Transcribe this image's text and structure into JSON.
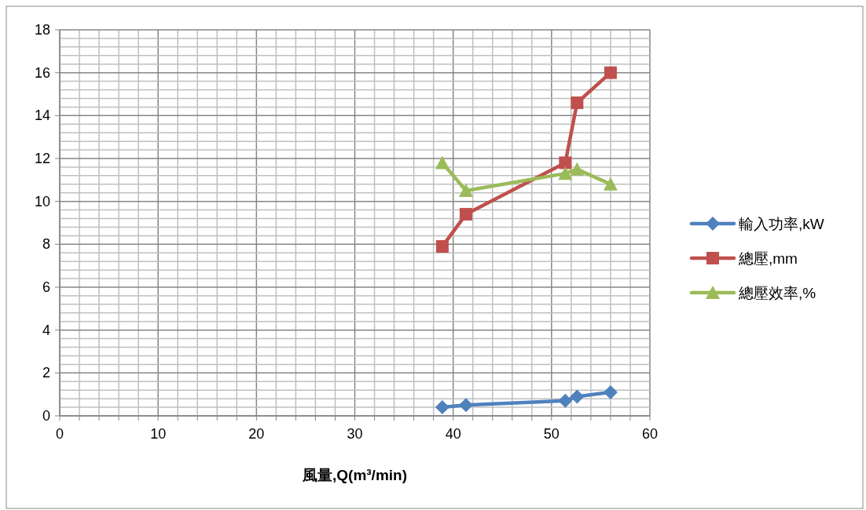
{
  "chart_data": {
    "type": "line",
    "xlabel": "風量,Q(m³/min)",
    "xlim": [
      0,
      60
    ],
    "ylim": [
      0,
      18
    ],
    "xticks": [
      0,
      {
        "value": 2,
        "label": null
      },
      {
        "value": 4,
        "label": null
      },
      {
        "value": 6,
        "label": null
      },
      {
        "value": 8,
        "label": null
      },
      10,
      {
        "value": 12,
        "label": null
      },
      {
        "value": 14,
        "label": null
      },
      {
        "value": 16,
        "label": null
      },
      {
        "value": 18,
        "label": null
      },
      20,
      {
        "value": 22,
        "label": null
      },
      {
        "value": 24,
        "label": null
      },
      {
        "value": 26,
        "label": null
      },
      {
        "value": 28,
        "label": null
      },
      30,
      {
        "value": 32,
        "label": null
      },
      {
        "value": 34,
        "label": null
      },
      {
        "value": 36,
        "label": null
      },
      {
        "value": 38,
        "label": null
      },
      40,
      {
        "value": 42,
        "label": null
      },
      {
        "value": 44,
        "label": null
      },
      {
        "value": 46,
        "label": null
      },
      {
        "value": 48,
        "label": null
      },
      50,
      {
        "value": 52,
        "label": null
      },
      {
        "value": 54,
        "label": null
      },
      {
        "value": 56,
        "label": null
      },
      {
        "value": 58,
        "label": null
      },
      60
    ],
    "yticks": [
      0,
      {
        "value": 0.4,
        "label": null
      },
      {
        "value": 0.8,
        "label": null
      },
      {
        "value": 1.2,
        "label": null
      },
      {
        "value": 1.6,
        "label": null
      },
      2,
      {
        "value": 2.4,
        "label": null
      },
      {
        "value": 2.8,
        "label": null
      },
      {
        "value": 3.2,
        "label": null
      },
      {
        "value": 3.6,
        "label": null
      },
      4,
      {
        "value": 4.4,
        "label": null
      },
      {
        "value": 4.8,
        "label": null
      },
      {
        "value": 5.2,
        "label": null
      },
      {
        "value": 5.6,
        "label": null
      },
      6,
      {
        "value": 6.4,
        "label": null
      },
      {
        "value": 6.8,
        "label": null
      },
      {
        "value": 7.2,
        "label": null
      },
      {
        "value": 7.6,
        "label": null
      },
      8,
      {
        "value": 8.4,
        "label": null
      },
      {
        "value": 8.8,
        "label": null
      },
      {
        "value": 9.2,
        "label": null
      },
      {
        "value": 9.6,
        "label": null
      },
      10,
      {
        "value": 10.4,
        "label": null
      },
      {
        "value": 10.8,
        "label": null
      },
      {
        "value": 11.2,
        "label": null
      },
      {
        "value": 11.6,
        "label": null
      },
      12,
      {
        "value": 12.4,
        "label": null
      },
      {
        "value": 12.8,
        "label": null
      },
      {
        "value": 13.2,
        "label": null
      },
      {
        "value": 13.6,
        "label": null
      },
      14,
      {
        "value": 14.4,
        "label": null
      },
      {
        "value": 14.8,
        "label": null
      },
      {
        "value": 15.2,
        "label": null
      },
      {
        "value": 15.6,
        "label": null
      },
      16,
      {
        "value": 16.4,
        "label": null
      },
      {
        "value": 16.8,
        "label": null
      },
      {
        "value": 17.2,
        "label": null
      },
      {
        "value": 17.6,
        "label": null
      },
      18
    ],
    "x": [
      38.9,
      41.3,
      51.4,
      52.6,
      56.0
    ],
    "grid": true,
    "legend": "right",
    "series": [
      {
        "name": "輸入功率,kW",
        "color": "#4f81bd",
        "marker": "diamond",
        "values": [
          0.4,
          0.5,
          0.7,
          0.9,
          1.1
        ]
      },
      {
        "name": "總壓,mm",
        "color": "#c0504d",
        "marker": "square",
        "values": [
          7.9,
          9.4,
          11.8,
          14.6,
          16.0
        ]
      },
      {
        "name": "總壓效率,%",
        "color": "#9bbb59",
        "marker": "triangle",
        "values": [
          11.8,
          10.5,
          11.3,
          11.5,
          10.8
        ]
      }
    ]
  }
}
